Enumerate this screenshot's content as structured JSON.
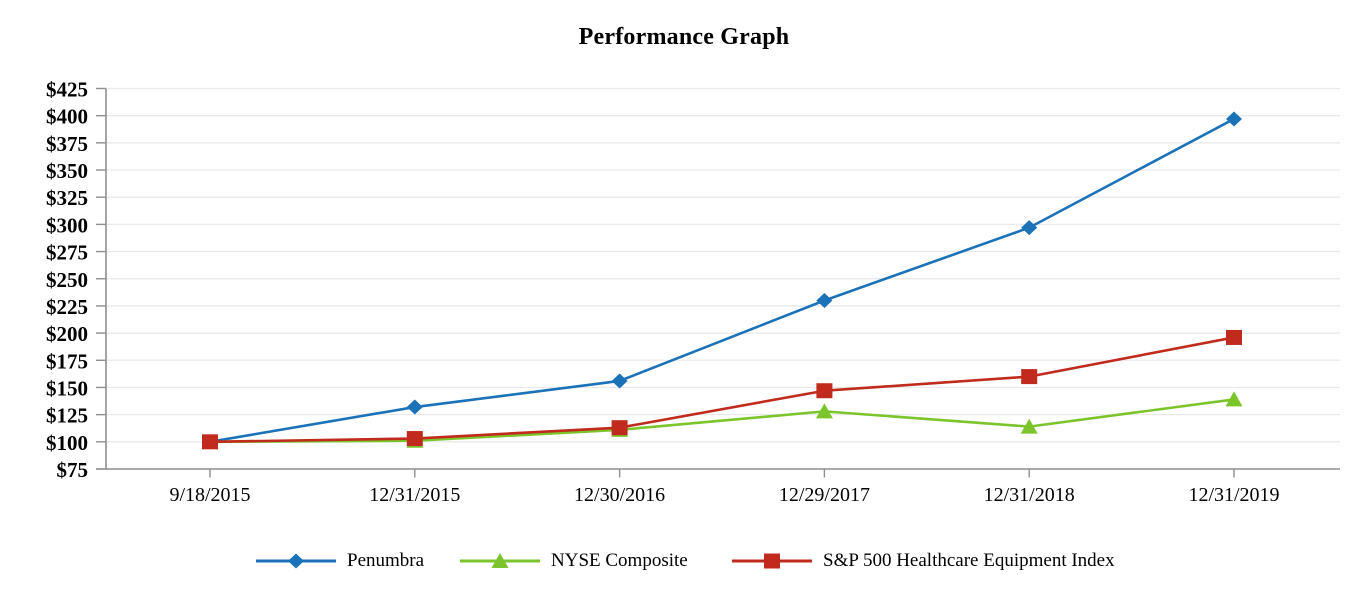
{
  "page": {
    "title": "Performance Graph"
  },
  "chart_data": {
    "type": "line",
    "title": "Performance Graph",
    "categories": [
      "9/18/2015",
      "12/31/2015",
      "12/30/2016",
      "12/29/2017",
      "12/31/2018",
      "12/31/2019"
    ],
    "series": [
      {
        "name": "Penumbra",
        "color": "#1b72b8",
        "marker": "diamond",
        "values": [
          100,
          132,
          156,
          230,
          297,
          397
        ]
      },
      {
        "name": "NYSE Composite",
        "color": "#7cc42c",
        "marker": "triangle",
        "values": [
          100,
          101,
          111,
          128,
          114,
          139
        ]
      },
      {
        "name": "S&P 500 Healthcare Equipment Index",
        "color": "#c02b1d",
        "marker": "square",
        "values": [
          100,
          103,
          113,
          147,
          160,
          196
        ]
      }
    ],
    "ylim": [
      75,
      425
    ],
    "y_tick_step": 25,
    "y_tick_prefix": "$",
    "y_ticks": [
      {
        "value": 425,
        "label": "$425"
      },
      {
        "value": 400,
        "label": "$400"
      },
      {
        "value": 375,
        "label": "$375"
      },
      {
        "value": 350,
        "label": "$350"
      },
      {
        "value": 325,
        "label": "$325"
      },
      {
        "value": 300,
        "label": "$300"
      },
      {
        "value": 275,
        "label": "$275"
      },
      {
        "value": 250,
        "label": "$250"
      },
      {
        "value": 225,
        "label": "$225"
      },
      {
        "value": 200,
        "label": "$200"
      },
      {
        "value": 175,
        "label": "$175"
      },
      {
        "value": 150,
        "label": "$150"
      },
      {
        "value": 125,
        "label": "$125"
      },
      {
        "value": 100,
        "label": "$100"
      },
      {
        "value": 75,
        "label": "$75"
      }
    ],
    "grid": "horizontal",
    "legend_position": "bottom",
    "grid_color": "#e9e9e9",
    "axis_color": "#8f8f8f",
    "text_color": "#000000"
  }
}
